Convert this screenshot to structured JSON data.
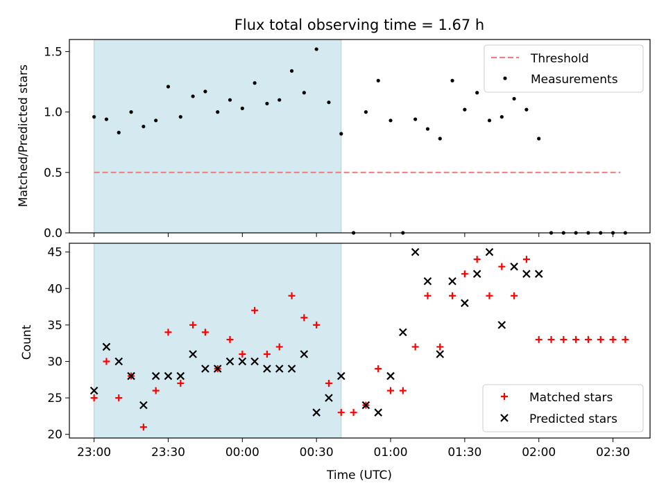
{
  "chart_data": [
    {
      "type": "scatter",
      "title": "Flux total observing time = 1.67 h",
      "xlabel": "",
      "ylabel": "Matched/Predicted stars",
      "ylim": [
        0,
        1.6
      ],
      "yticks": [
        "0.0",
        "0.5",
        "1.0",
        "1.5"
      ],
      "xlim_minutes": [
        -10,
        225
      ],
      "shaded_span_minutes": [
        0,
        100
      ],
      "shade_color": "#d4eaf0",
      "legend_position": "top-right",
      "threshold": {
        "name": "Threshold",
        "value": 0.5,
        "x_range_minutes": [
          0,
          213
        ],
        "color": "#f08080"
      },
      "series": [
        {
          "name": "Measurements",
          "color": "#000000",
          "x_minutes": [
            0,
            5,
            10,
            15,
            20,
            25,
            30,
            35,
            40,
            45,
            50,
            55,
            60,
            65,
            70,
            75,
            80,
            85,
            90,
            95,
            100,
            105,
            110,
            115,
            120,
            125,
            130,
            135,
            140,
            145,
            150,
            155,
            160,
            165,
            170,
            175,
            180,
            185,
            190,
            195,
            200,
            205,
            210,
            215
          ],
          "y": [
            0.96,
            0.94,
            0.83,
            1.0,
            0.88,
            0.93,
            1.21,
            0.96,
            1.13,
            1.17,
            1.0,
            1.1,
            1.03,
            1.24,
            1.07,
            1.1,
            1.34,
            1.16,
            1.52,
            1.08,
            0.82,
            0.0,
            1.0,
            1.26,
            0.93,
            0.0,
            0.94,
            0.86,
            0.78,
            1.26,
            1.02,
            1.16,
            0.93,
            0.96,
            1.11,
            1.02,
            0.78,
            0.0,
            0.0,
            0.0,
            0.0,
            0.0,
            0.0,
            0.0
          ]
        }
      ]
    },
    {
      "type": "scatter",
      "xlabel": "Time (UTC)",
      "ylabel": "Count",
      "ylim": [
        19.5,
        46.2
      ],
      "yticks": [
        "20",
        "25",
        "30",
        "35",
        "40",
        "45"
      ],
      "xlim_minutes": [
        -10,
        225
      ],
      "xticks": [
        {
          "minute": 0,
          "label": "23:00"
        },
        {
          "minute": 30,
          "label": "23:30"
        },
        {
          "minute": 60,
          "label": "00:00"
        },
        {
          "minute": 90,
          "label": "00:30"
        },
        {
          "minute": 120,
          "label": "01:00"
        },
        {
          "minute": 150,
          "label": "01:30"
        },
        {
          "minute": 180,
          "label": "02:00"
        },
        {
          "minute": 210,
          "label": "02:30"
        }
      ],
      "shaded_span_minutes": [
        0,
        100
      ],
      "shade_color": "#d4eaf0",
      "legend_position": "bottom-right",
      "series": [
        {
          "name": "Matched stars",
          "marker": "plus",
          "color": "#ff0000",
          "x_minutes": [
            0,
            5,
            10,
            15,
            20,
            25,
            30,
            35,
            40,
            45,
            50,
            55,
            60,
            65,
            70,
            75,
            80,
            85,
            90,
            95,
            100,
            105,
            110,
            115,
            120,
            125,
            130,
            135,
            140,
            145,
            150,
            155,
            160,
            165,
            170,
            175,
            180,
            185,
            190,
            195,
            200,
            205,
            210,
            215
          ],
          "y": [
            25,
            30,
            25,
            28,
            21,
            26,
            34,
            27,
            35,
            34,
            29,
            33,
            31,
            37,
            31,
            32,
            39,
            36,
            35,
            27,
            23,
            23,
            24,
            29,
            26,
            26,
            32,
            39,
            32,
            39,
            42,
            44,
            39,
            43,
            39,
            44,
            33,
            33,
            33,
            33,
            33,
            33,
            33,
            33
          ]
        },
        {
          "name": "Predicted stars",
          "marker": "x",
          "color": "#000000",
          "x_minutes": [
            0,
            5,
            10,
            15,
            20,
            25,
            30,
            35,
            40,
            45,
            50,
            55,
            60,
            65,
            70,
            75,
            80,
            85,
            90,
            95,
            100,
            110,
            115,
            120,
            125,
            130,
            135,
            140,
            145,
            150,
            155,
            160,
            165,
            170,
            175,
            180
          ],
          "y": [
            26,
            32,
            30,
            28,
            24,
            28,
            28,
            28,
            31,
            29,
            29,
            30,
            30,
            30,
            29,
            29,
            29,
            31,
            23,
            25,
            28,
            24,
            23,
            28,
            34,
            45,
            41,
            31,
            41,
            38,
            42,
            45,
            35,
            43,
            42,
            42
          ]
        }
      ]
    }
  ]
}
